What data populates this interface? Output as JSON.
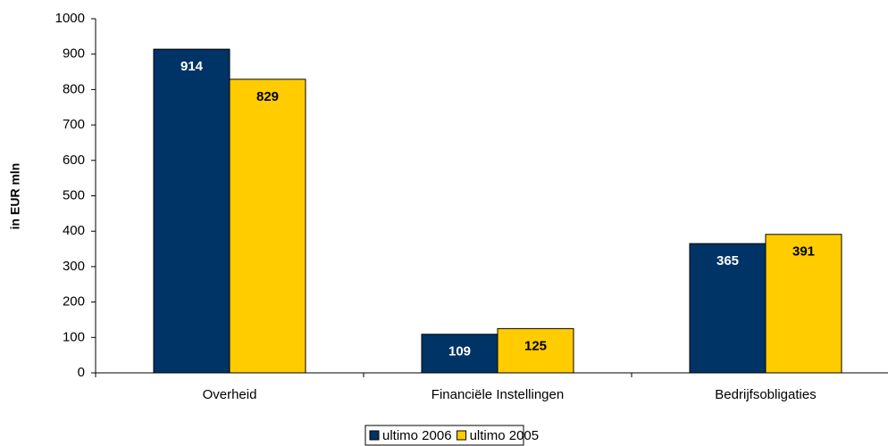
{
  "chart_data": {
    "type": "bar",
    "y_label": "in EUR mln",
    "categories": [
      "Overheid",
      "Financiële Instellingen",
      "Bedrijfsobligaties"
    ],
    "series": [
      {
        "name": "ultimo 2006",
        "color": "#003366",
        "values": [
          914,
          109,
          365
        ]
      },
      {
        "name": "ultimo 2005",
        "color": "#ffcc00",
        "values": [
          829,
          125,
          391
        ]
      }
    ],
    "ylim": [
      0,
      1000
    ],
    "yticks": [
      0,
      100,
      200,
      300,
      400,
      500,
      600,
      700,
      800,
      900,
      1000
    ],
    "grid": false,
    "legend": "bottom"
  }
}
